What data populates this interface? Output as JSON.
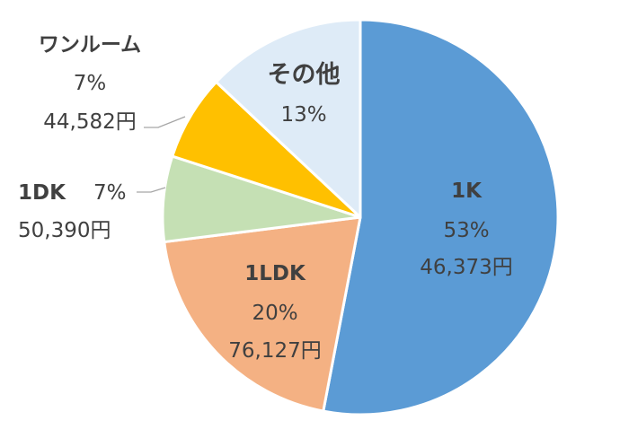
{
  "chart_data": {
    "type": "pie",
    "title": "",
    "legend": "none",
    "slices": [
      {
        "name": "1K",
        "percent": 53,
        "percent_label": "53%",
        "rent_label": "46,373円",
        "color": "#5b9bd5"
      },
      {
        "name": "1LDK",
        "percent": 20,
        "percent_label": "20%",
        "rent_label": "76,127円",
        "color": "#f4b183"
      },
      {
        "name": "1DK",
        "percent": 7,
        "percent_label": "7%",
        "rent_label": "50,390円",
        "color": "#c5e0b4"
      },
      {
        "name": "ワンルーム",
        "percent": 7,
        "percent_label": "7%",
        "rent_label": "44,582円",
        "color": "#ffc000"
      },
      {
        "name": "その他",
        "percent": 13,
        "percent_label": "13%",
        "rent_label": "",
        "color": "#deebf7"
      }
    ]
  }
}
